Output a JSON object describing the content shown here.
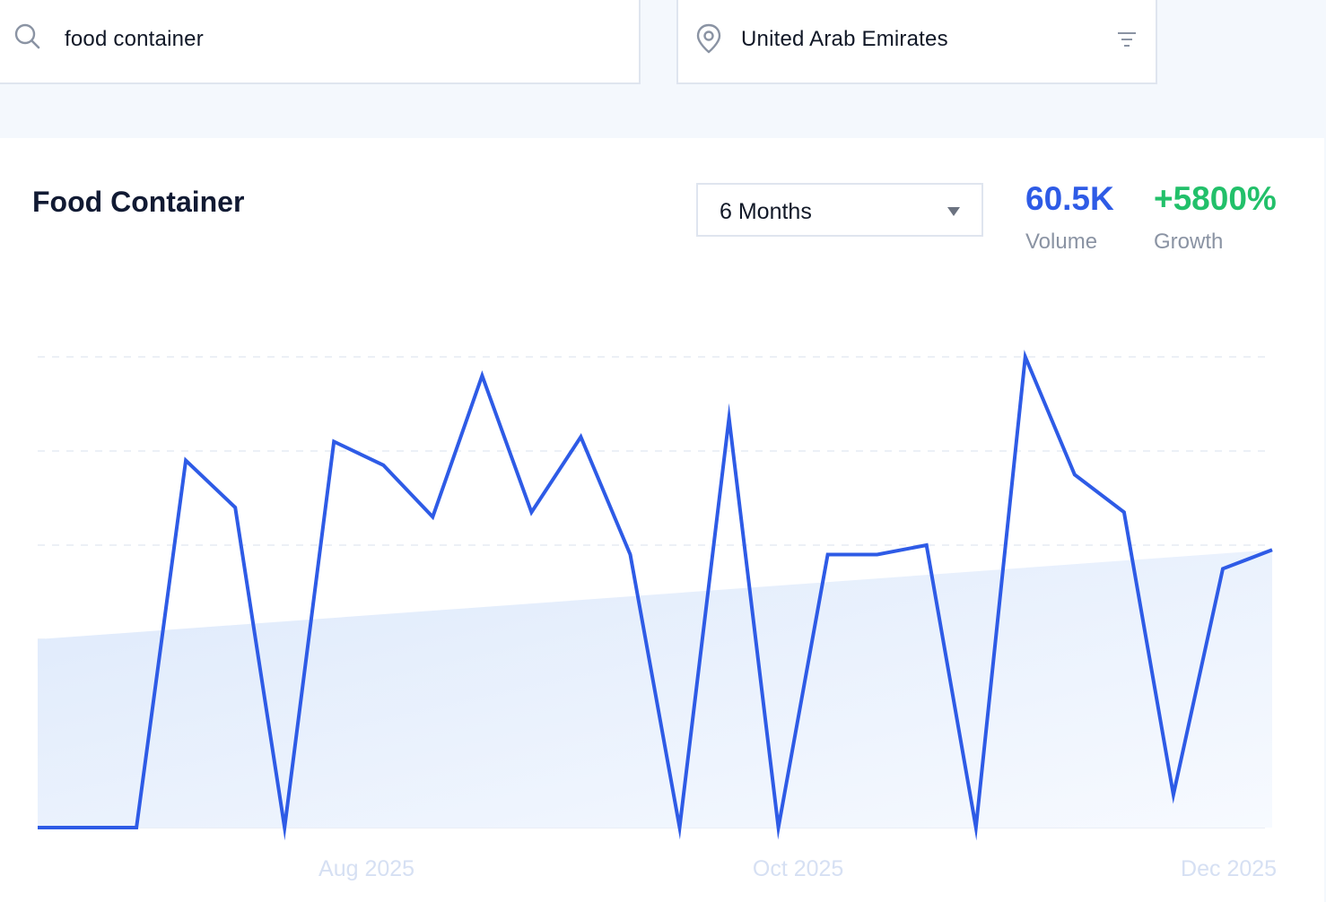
{
  "search": {
    "query": "food container"
  },
  "location": {
    "value": "United Arab Emirates"
  },
  "card": {
    "title": "Food Container",
    "period": {
      "selected": "6 Months"
    },
    "metrics": {
      "volume": {
        "value": "60.5K",
        "label": "Volume"
      },
      "growth": {
        "value": "+5800%",
        "label": "Growth"
      }
    }
  },
  "colors": {
    "line": "#2e5be6",
    "trend_fill": "#dde9fb",
    "volume": "#2e5be6",
    "growth": "#22c06a"
  },
  "icons": [
    "search-icon",
    "location-pin-icon",
    "filter-icon",
    "chevron-down-icon"
  ],
  "chart_data": {
    "type": "line",
    "title": "",
    "xlabel": "",
    "ylabel": "",
    "ylim": [
      0,
      100
    ],
    "grid": true,
    "x_ticks": [
      {
        "label": "Aug 2025",
        "index": 6.66
      },
      {
        "label": "Oct 2025",
        "index": 15.4
      },
      {
        "label": "Dec 2025",
        "index": 24.12
      }
    ],
    "series": [
      {
        "values": [
          0,
          0,
          0,
          78,
          68,
          0,
          82,
          77,
          66,
          96,
          67,
          83,
          58,
          0,
          87,
          0,
          58,
          58,
          60,
          0,
          100,
          75,
          67,
          7,
          55,
          59
        ]
      }
    ],
    "trend": {
      "start": 40,
      "end": 59
    }
  }
}
